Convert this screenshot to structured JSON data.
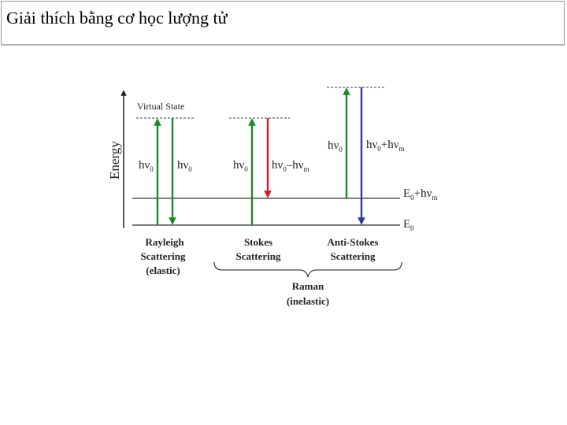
{
  "slide": {
    "title": "Giải thích bằng cơ học lượng tử"
  },
  "diagram": {
    "axis_label": "Energy",
    "virtual_state_label": "Virtual State",
    "rayleigh": {
      "up_label": "hν",
      "up_sub": "0",
      "down_label": "hν",
      "down_sub": "0",
      "name_line1": "Rayleigh",
      "name_line2": "Scattering",
      "name_line3": "(elastic)"
    },
    "stokes": {
      "up_label": "hν",
      "up_sub": "0",
      "down_label": "hν",
      "down_sub": "0",
      "down_suffix": "–hν",
      "down_suffix_sub": "m",
      "name_line1": "Stokes",
      "name_line2": "Scattering"
    },
    "anti_stokes": {
      "up_label": "hν",
      "up_sub": "0",
      "down_label": "hν",
      "down_sub": "0",
      "down_suffix": "+hν",
      "down_suffix_sub": "m",
      "name_line1": "Anti-Stokes",
      "name_line2": "Scattering"
    },
    "levels": {
      "excited_label": "E",
      "excited_sub": "0",
      "excited_suffix": "+hν",
      "excited_suffix_sub": "m",
      "ground_label": "E",
      "ground_sub": "0"
    },
    "raman": {
      "line1": "Raman",
      "line2": "(inelastic)"
    },
    "colors": {
      "green": "#1a8a2a",
      "red": "#d81c2a",
      "blue": "#2a3aa8",
      "line": "#555555",
      "dashed": "#666666"
    }
  }
}
